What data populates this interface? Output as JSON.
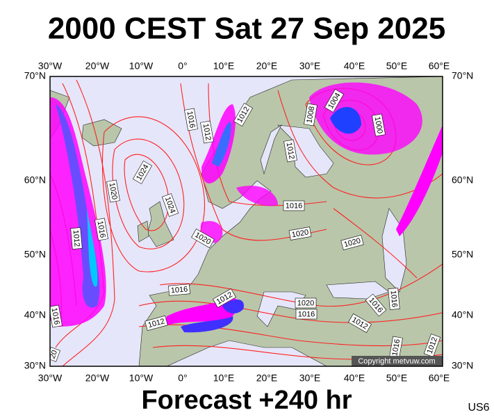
{
  "title": "2000 CEST Sat 27 Sep 2025",
  "longitude_labels": [
    "30°W",
    "20°W",
    "10°W",
    "0°",
    "10°E",
    "20°E",
    "30°E",
    "40°E",
    "50°E",
    "60°E"
  ],
  "latitude_labels": [
    "70°N",
    "60°N",
    "50°N",
    "40°N",
    "30°N"
  ],
  "isobar_labels": [
    "1016",
    "1012",
    "1012",
    "1008",
    "1004",
    "1000",
    "1012",
    "1024",
    "1020",
    "1024",
    "1020",
    "1016",
    "1020",
    "1020",
    "1012",
    "1016",
    "1016",
    "1012",
    "1020",
    "1016",
    "1016",
    "1016",
    "1012",
    "1012",
    "1016",
    "20",
    "1016",
    "1012"
  ],
  "copyright": "Copyright metvuw.com",
  "footer": "Forecast +240 hr",
  "code": "US6"
}
